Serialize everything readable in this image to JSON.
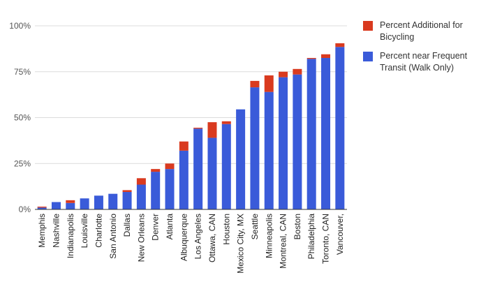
{
  "colors": {
    "walk": "#3A5BD9",
    "bike": "#D93A1F",
    "grid": "#dcdcdc",
    "axis": "#333333"
  },
  "legend": [
    {
      "label": "Percent Additional for Bicycling",
      "color": "#D93A1F"
    },
    {
      "label": "Percent near Frequent Transit (Walk Only)",
      "color": "#3A5BD9"
    }
  ],
  "chart_data": {
    "type": "bar",
    "stacked": true,
    "ylim": [
      0,
      100
    ],
    "yticks": [
      "0%",
      "25%",
      "50%",
      "75%",
      "100%"
    ],
    "ytick_values": [
      0,
      25,
      50,
      75,
      100
    ],
    "grid": true,
    "legend_position": "right",
    "categories": [
      "Memphis",
      "Nashville",
      "Indianapolis",
      "Louisville",
      "Charlotte",
      "San Antonio",
      "Dallas",
      "New Orleans",
      "Denver",
      "Atlanta",
      "Albuquerque",
      "Los Angeles",
      "Ottawa, CAN",
      "Houston",
      "Mexico City, MX",
      "Seattle",
      "Minneapolis",
      "Montreal, CAN",
      "Boston",
      "Philadelphia",
      "Toronto, CAN",
      "Vancouver,"
    ],
    "series": [
      {
        "name": "Percent near Frequent Transit (Walk Only)",
        "values": [
          1,
          4,
          3.5,
          6,
          7.5,
          8.5,
          9.5,
          13.5,
          20.5,
          22,
          32,
          44,
          39,
          46.5,
          54.5,
          66.5,
          64,
          72,
          73.5,
          82,
          82.5,
          88.5
        ]
      },
      {
        "name": "Percent Additional for Bicycling",
        "values": [
          0.5,
          0,
          1.5,
          0,
          0,
          0,
          1,
          3.5,
          1.5,
          3,
          5,
          0.5,
          8.5,
          1.5,
          0,
          3.5,
          9,
          3,
          3,
          0.5,
          2,
          2
        ]
      }
    ]
  }
}
